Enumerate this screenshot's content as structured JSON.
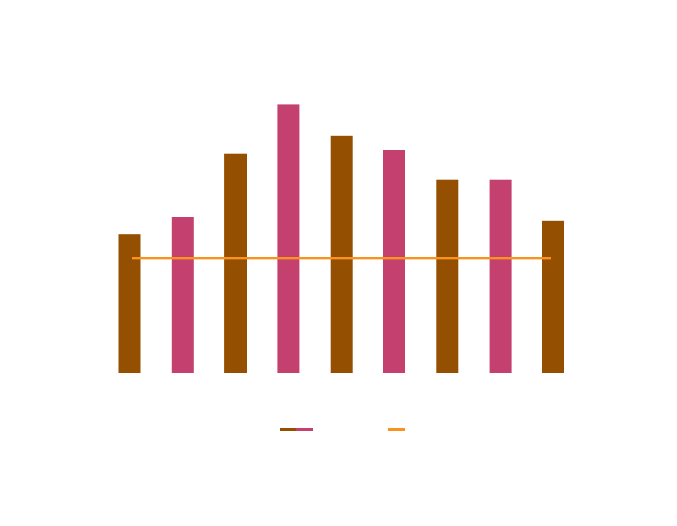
{
  "chart_data": {
    "type": "bar",
    "title": "",
    "xlabel": "",
    "ylabel": "",
    "categories": [
      "",
      "",
      "",
      "",
      "",
      "",
      "",
      "",
      ""
    ],
    "values": [
      35,
      39.5,
      55.5,
      68,
      60,
      56.5,
      49,
      49,
      38.5
    ],
    "bar_colors": [
      "#944f00",
      "#c4406e",
      "#944f00",
      "#c4406e",
      "#944f00",
      "#c4406e",
      "#944f00",
      "#c4406e",
      "#944f00"
    ],
    "reference_line": {
      "value": 29,
      "color": "#f7931e"
    },
    "ylim": [
      0,
      80
    ],
    "grid": false,
    "legend_placement": "bottom-center",
    "legend": [
      {
        "type": "bar-swatch",
        "colors": [
          "#944f00",
          "#c4406e"
        ],
        "label": ""
      },
      {
        "type": "line-swatch",
        "colors": [
          "#f7931e"
        ],
        "label": ""
      }
    ]
  }
}
